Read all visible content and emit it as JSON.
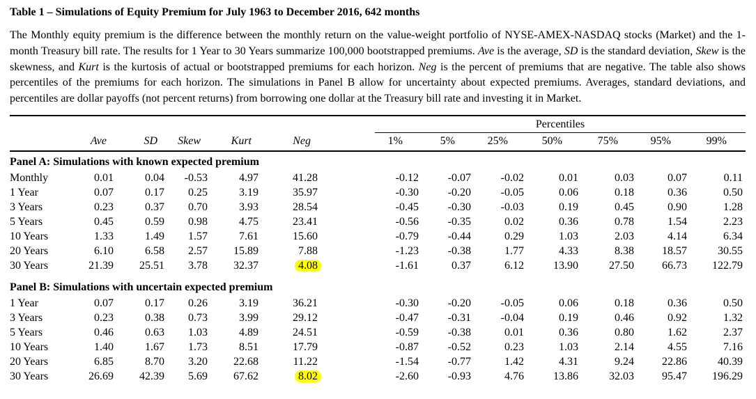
{
  "title": "Table 1 – Simulations of Equity Premium for July 1963 to December 2016, 642 months",
  "description": {
    "segments": [
      {
        "text": "The Monthly equity premium is the difference between the monthly return on the value-weight portfolio of NYSE-AMEX-NASDAQ stocks (Market) and the 1-month Treasury bill rate. The results for 1 Year to 30 Years summarize 100,000 bootstrapped premiums. ",
        "italic": false
      },
      {
        "text": "Ave",
        "italic": true
      },
      {
        "text": " is the average, ",
        "italic": false
      },
      {
        "text": "SD",
        "italic": true
      },
      {
        "text": " is the standard deviation, ",
        "italic": false
      },
      {
        "text": "Skew",
        "italic": true
      },
      {
        "text": " is the skewness, and ",
        "italic": false
      },
      {
        "text": "Kurt",
        "italic": true
      },
      {
        "text": " is the kurtosis of actual or bootstrapped premiums for each horizon. ",
        "italic": false
      },
      {
        "text": "Neg",
        "italic": true
      },
      {
        "text": " is the percent of premiums that are negative. The table also shows percentiles of the premiums for each horizon. The simulations in Panel B allow for uncertainty about expected premiums. Averages, standard deviations, and percentiles are dollar payoffs (not percent returns) from borrowing one dollar at the Treasury bill rate and investing it in Market.",
        "italic": false
      }
    ]
  },
  "colors": {
    "highlight": "#ffff00",
    "text": "#000000",
    "background": "#ffffff"
  },
  "chart_data": {
    "type": "table",
    "title": "Table 1 – Simulations of Equity Premium for July 1963 to December 2016, 642 months",
    "percentiles_label": "Percentiles",
    "stat_headers": [
      "Ave",
      "SD",
      "Skew",
      "Kurt",
      "Neg"
    ],
    "percentile_headers": [
      "1%",
      "5%",
      "25%",
      "50%",
      "75%",
      "95%",
      "99%"
    ],
    "panels": [
      {
        "label": "Panel A: Simulations with known expected premium",
        "rows": [
          {
            "label": "Monthly",
            "values": [
              "0.01",
              "0.04",
              "-0.53",
              "4.97",
              "41.28",
              "-0.12",
              "-0.07",
              "-0.02",
              "0.01",
              "0.03",
              "0.07",
              "0.11"
            ],
            "highlight_col": null
          },
          {
            "label": "1 Year",
            "values": [
              "0.07",
              "0.17",
              "0.25",
              "3.19",
              "35.97",
              "-0.30",
              "-0.20",
              "-0.05",
              "0.06",
              "0.18",
              "0.36",
              "0.50"
            ],
            "highlight_col": null
          },
          {
            "label": "3 Years",
            "values": [
              "0.23",
              "0.37",
              "0.70",
              "3.93",
              "28.54",
              "-0.45",
              "-0.30",
              "-0.03",
              "0.19",
              "0.45",
              "0.90",
              "1.28"
            ],
            "highlight_col": null
          },
          {
            "label": "5 Years",
            "values": [
              "0.45",
              "0.59",
              "0.98",
              "4.75",
              "23.41",
              "-0.56",
              "-0.35",
              "0.02",
              "0.36",
              "0.78",
              "1.54",
              "2.23"
            ],
            "highlight_col": null
          },
          {
            "label": "10 Years",
            "values": [
              "1.33",
              "1.49",
              "1.57",
              "7.61",
              "15.60",
              "-0.79",
              "-0.44",
              "0.29",
              "1.03",
              "2.03",
              "4.14",
              "6.34"
            ],
            "highlight_col": null
          },
          {
            "label": "20 Years",
            "values": [
              "6.10",
              "6.58",
              "2.57",
              "15.89",
              "7.88",
              "-1.23",
              "-0.38",
              "1.77",
              "4.33",
              "8.38",
              "18.57",
              "30.55"
            ],
            "highlight_col": null
          },
          {
            "label": "30 Years",
            "values": [
              "21.39",
              "25.51",
              "3.78",
              "32.37",
              "4.08",
              "-1.61",
              "0.37",
              "6.12",
              "13.90",
              "27.50",
              "66.73",
              "122.79"
            ],
            "highlight_col": 4
          }
        ]
      },
      {
        "label": "Panel B: Simulations with uncertain expected premium",
        "rows": [
          {
            "label": "1 Year",
            "values": [
              "0.07",
              "0.17",
              "0.26",
              "3.19",
              "36.21",
              "-0.30",
              "-0.20",
              "-0.05",
              "0.06",
              "0.18",
              "0.36",
              "0.50"
            ],
            "highlight_col": null
          },
          {
            "label": "3 Years",
            "values": [
              "0.23",
              "0.38",
              "0.73",
              "3.99",
              "29.12",
              "-0.47",
              "-0.31",
              "-0.04",
              "0.19",
              "0.46",
              "0.92",
              "1.32"
            ],
            "highlight_col": null
          },
          {
            "label": "5 Years",
            "values": [
              "0.46",
              "0.63",
              "1.03",
              "4.89",
              "24.51",
              "-0.59",
              "-0.38",
              "0.01",
              "0.36",
              "0.80",
              "1.62",
              "2.37"
            ],
            "highlight_col": null
          },
          {
            "label": "10 Years",
            "values": [
              "1.40",
              "1.67",
              "1.73",
              "8.51",
              "17.79",
              "-0.87",
              "-0.52",
              "0.23",
              "1.03",
              "2.14",
              "4.55",
              "7.16"
            ],
            "highlight_col": null
          },
          {
            "label": "20 Years",
            "values": [
              "6.85",
              "8.70",
              "3.20",
              "22.68",
              "11.22",
              "-1.54",
              "-0.77",
              "1.42",
              "4.31",
              "9.24",
              "22.86",
              "40.39"
            ],
            "highlight_col": null
          },
          {
            "label": "30 Years",
            "values": [
              "26.69",
              "42.39",
              "5.69",
              "67.62",
              "8.02",
              "-2.60",
              "-0.93",
              "4.76",
              "13.86",
              "32.03",
              "95.47",
              "196.29"
            ],
            "highlight_col": 4
          }
        ]
      }
    ]
  }
}
